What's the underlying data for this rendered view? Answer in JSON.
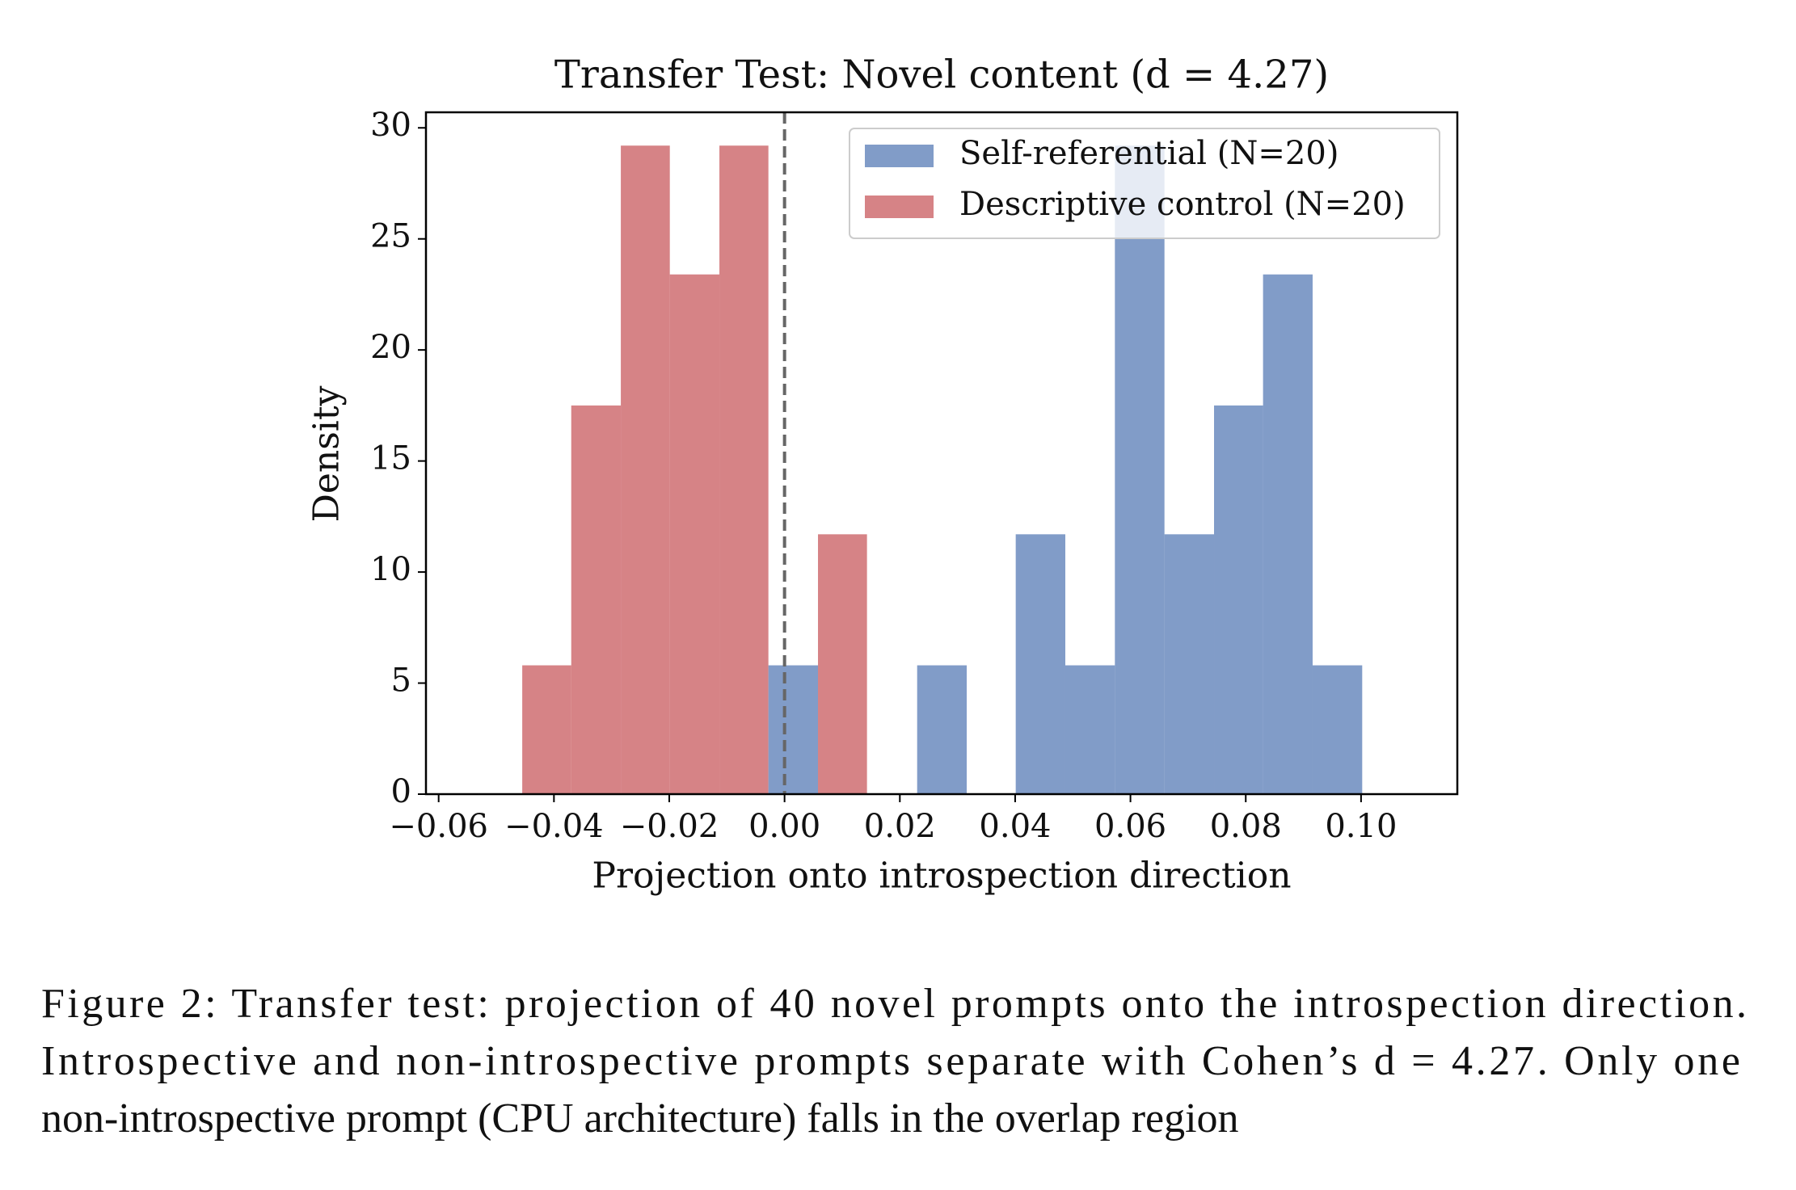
{
  "chart_data": {
    "type": "histogram",
    "title": "Transfer Test: Novel content (d = 4.27)",
    "x_label": "Projection onto introspection direction",
    "y_label": "Density",
    "series": [
      {
        "name": "Self-referential (N=20)",
        "color": "#4c72b0",
        "bins": [
          -0.0028,
          0.0058,
          0.0144,
          0.023,
          0.0316,
          0.0401,
          0.0487,
          0.0573,
          0.0659,
          0.0745,
          0.083,
          0.0916,
          0.1002
        ],
        "values": [
          5.8,
          0,
          0,
          5.8,
          0,
          11.7,
          5.8,
          29.2,
          11.7,
          17.5,
          23.4,
          5.8
        ]
      },
      {
        "name": "Descriptive control (N=20)",
        "color": "#c44e52",
        "bins": [
          -0.0455,
          -0.037,
          -0.0284,
          -0.0199,
          -0.0113,
          -0.0028,
          0.0058,
          0.0143
        ],
        "values": [
          5.8,
          17.5,
          29.2,
          23.4,
          29.2,
          0,
          11.7
        ]
      }
    ],
    "opacity": 0.7,
    "vline": 0,
    "xlim": [
      -0.0622,
      0.1167
    ],
    "ylim": [
      0,
      30.7
    ],
    "xticks": [
      {
        "value": -0.06,
        "label": "−0.06"
      },
      {
        "value": -0.04,
        "label": "−0.04"
      },
      {
        "value": -0.02,
        "label": "−0.02"
      },
      {
        "value": 0,
        "label": "0.00"
      },
      {
        "value": 0.02,
        "label": "0.02"
      },
      {
        "value": 0.04,
        "label": "0.04"
      },
      {
        "value": 0.06,
        "label": "0.06"
      },
      {
        "value": 0.08,
        "label": "0.08"
      },
      {
        "value": 0.1,
        "label": "0.10"
      }
    ],
    "yticks": [
      0,
      5,
      10,
      15,
      20,
      25,
      30
    ],
    "legend": "upper right"
  },
  "caption": {
    "lines": [
      "Figure 2: Transfer test: projection of 40 novel prompts onto the introspection direction.",
      "Introspective and non-introspective prompts separate with Cohen’s d = 4.27. Only one",
      "non-introspective prompt (CPU architecture) falls in the overlap region"
    ]
  }
}
